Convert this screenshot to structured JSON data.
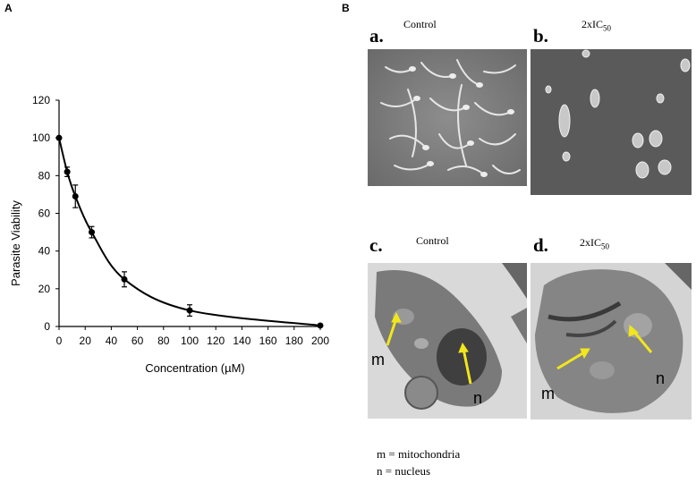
{
  "panel_a_label": "A",
  "panel_b_label": "B",
  "chart_data": {
    "type": "line",
    "xlabel": "Concentration (µM)",
    "ylabel": "Parasite  Viability",
    "xlim": [
      0,
      200
    ],
    "ylim": [
      0,
      120
    ],
    "xticks": [
      0,
      20,
      40,
      60,
      80,
      100,
      120,
      140,
      160,
      180,
      200
    ],
    "yticks": [
      0,
      20,
      40,
      60,
      80,
      100,
      120
    ],
    "grid": false,
    "x": [
      0,
      6.25,
      12.5,
      25,
      50,
      100,
      200
    ],
    "y": [
      100,
      82,
      69,
      50,
      25,
      8.5,
      0.5
    ],
    "error": [
      0,
      2.5,
      6,
      3,
      4,
      3,
      0.3
    ]
  },
  "panel_b": {
    "top_left": {
      "letter": "a.",
      "title": "Control"
    },
    "top_right": {
      "letter": "b.",
      "title_main": "2xIC",
      "title_sub": "50"
    },
    "bottom_left": {
      "letter": "c.",
      "title": "Control",
      "labels": [
        "m",
        "n"
      ]
    },
    "bottom_right": {
      "letter": "d.",
      "title_main": "2xIC",
      "title_sub": "50",
      "labels": [
        "m",
        "n"
      ]
    }
  },
  "legend": {
    "line1": "m =  mitochondria",
    "line2": "n  =  nucleus"
  }
}
